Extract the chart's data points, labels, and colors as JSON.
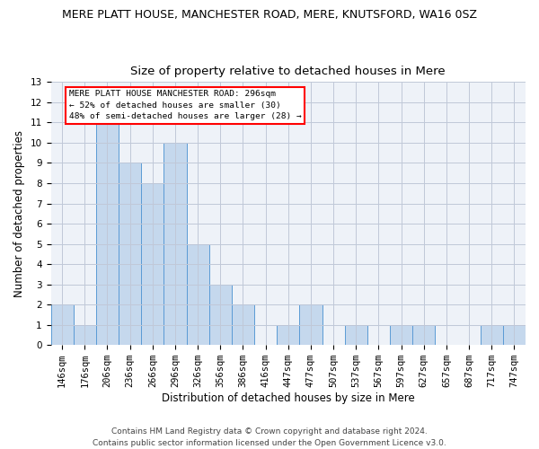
{
  "title1": "MERE PLATT HOUSE, MANCHESTER ROAD, MERE, KNUTSFORD, WA16 0SZ",
  "title2": "Size of property relative to detached houses in Mere",
  "xlabel": "Distribution of detached houses by size in Mere",
  "ylabel": "Number of detached properties",
  "footnote": "Contains HM Land Registry data © Crown copyright and database right 2024.\nContains public sector information licensed under the Open Government Licence v3.0.",
  "bar_labels": [
    "146sqm",
    "176sqm",
    "206sqm",
    "236sqm",
    "266sqm",
    "296sqm",
    "326sqm",
    "356sqm",
    "386sqm",
    "416sqm",
    "447sqm",
    "477sqm",
    "507sqm",
    "537sqm",
    "567sqm",
    "597sqm",
    "627sqm",
    "657sqm",
    "687sqm",
    "717sqm",
    "747sqm"
  ],
  "bar_values": [
    2,
    1,
    11,
    9,
    8,
    10,
    5,
    3,
    2,
    0,
    1,
    2,
    0,
    1,
    0,
    1,
    1,
    0,
    0,
    1,
    1
  ],
  "bar_color": "#c5d8ed",
  "bar_edge_color": "#5b9bd5",
  "highlight_index": 5,
  "annotation_text": "MERE PLATT HOUSE MANCHESTER ROAD: 296sqm\n← 52% of detached houses are smaller (30)\n48% of semi-detached houses are larger (28) →",
  "annotation_box_color": "white",
  "annotation_box_edge": "red",
  "ylim": [
    0,
    13
  ],
  "yticks": [
    0,
    1,
    2,
    3,
    4,
    5,
    6,
    7,
    8,
    9,
    10,
    11,
    12,
    13
  ],
  "grid_color": "#c0c8d8",
  "bg_color": "#eef2f8",
  "title1_fontsize": 9,
  "title2_fontsize": 9.5,
  "xlabel_fontsize": 8.5,
  "ylabel_fontsize": 8.5,
  "tick_fontsize": 7.5,
  "annot_fontsize": 6.8,
  "footnote_fontsize": 6.5
}
